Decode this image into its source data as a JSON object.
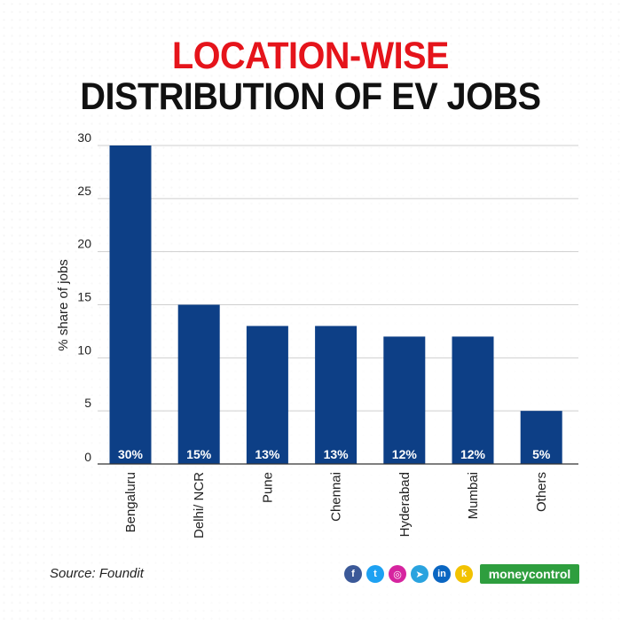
{
  "title": {
    "line1": "LOCATION-WISE",
    "line2": "DISTRIBUTION OF EV JOBS"
  },
  "colors": {
    "title_accent": "#e5141b",
    "title_main": "#111111",
    "bar": "#0d3f86",
    "grid": "#cfcfcf",
    "axis": "#333333"
  },
  "chart_data": {
    "type": "bar",
    "categories": [
      "Bengaluru",
      "Delhi/ NCR",
      "Pune",
      "Chennai",
      "Hyderabad",
      "Mumbai",
      "Others"
    ],
    "values": [
      30,
      15,
      13,
      13,
      12,
      12,
      5
    ],
    "data_labels": [
      "30%",
      "15%",
      "13%",
      "13%",
      "12%",
      "12%",
      "5%"
    ],
    "ylabel": "% share of jobs",
    "xlabel": "",
    "ylim": [
      0,
      30
    ],
    "yticks": [
      0,
      5,
      10,
      15,
      20,
      25,
      30
    ],
    "grid": true,
    "data_label_position": "inside-bottom"
  },
  "footer": {
    "source": "Source: Foundit",
    "brand": "moneycontrol",
    "social_icons": [
      {
        "name": "facebook-icon",
        "glyph": "f",
        "color": "#3b5998"
      },
      {
        "name": "twitter-icon",
        "glyph": "t",
        "color": "#1da1f2"
      },
      {
        "name": "instagram-icon",
        "glyph": "◎",
        "color": "#d6249f"
      },
      {
        "name": "telegram-icon",
        "glyph": "➤",
        "color": "#2aa3df"
      },
      {
        "name": "linkedin-icon",
        "glyph": "in",
        "color": "#0a66c2"
      },
      {
        "name": "koo-icon",
        "glyph": "k",
        "color": "#f2c200"
      }
    ]
  }
}
